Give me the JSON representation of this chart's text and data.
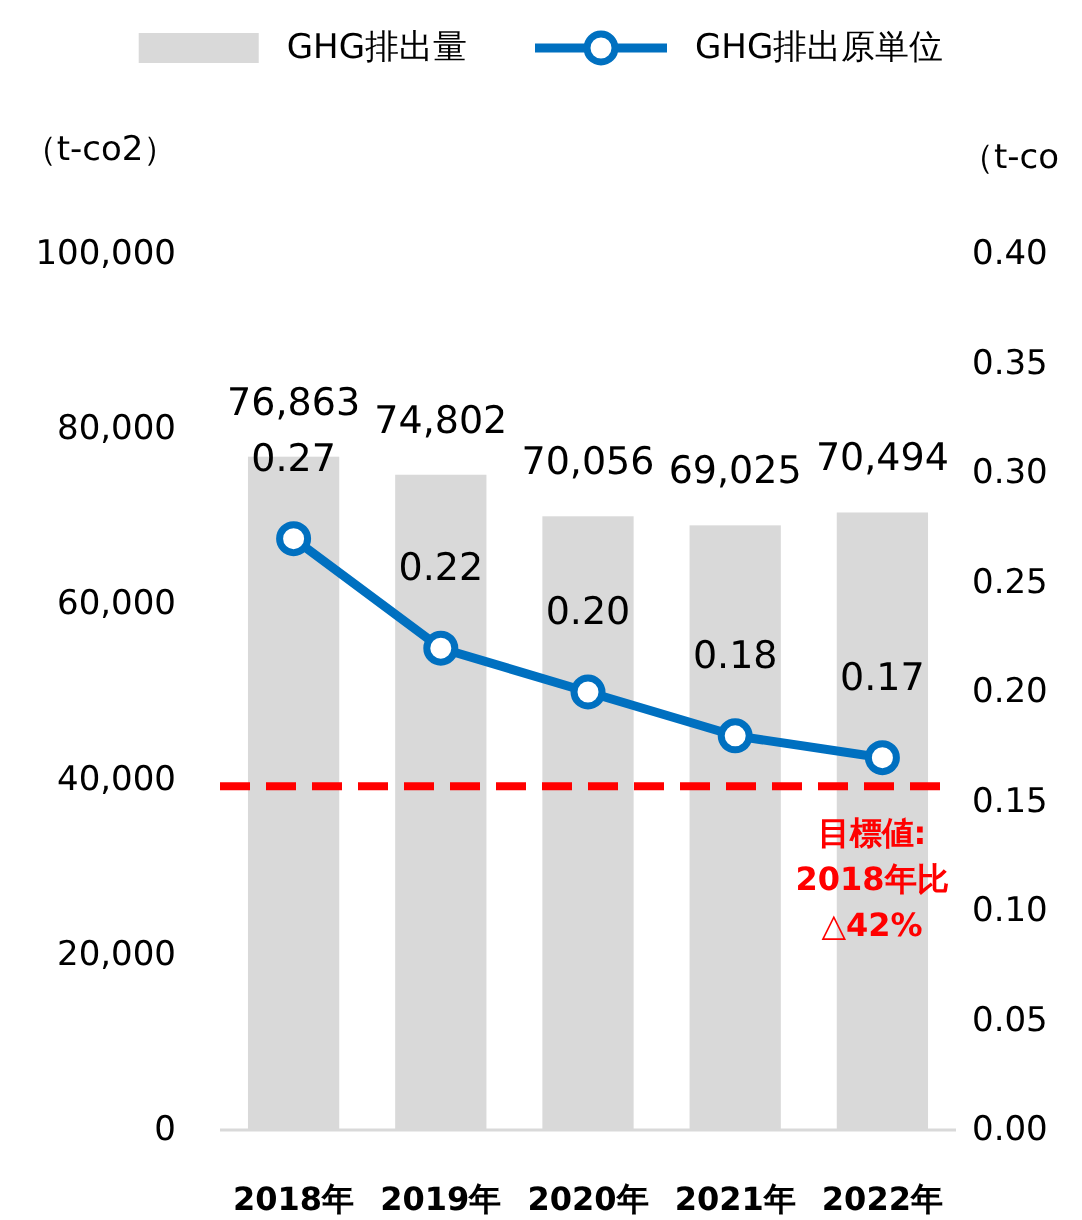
{
  "chart_data": {
    "type": "bar",
    "legend": "top",
    "categories": [
      "2018年",
      "2019年",
      "2020年",
      "2021年",
      "2022年"
    ],
    "ylabel": "（t-co2）",
    "y2label": "（t-co",
    "ylim": [
      0,
      100000
    ],
    "yticks": [
      0,
      {
        "value": 20000,
        "label": "20,000"
      },
      {
        "value": 40000,
        "label": "40,000"
      },
      {
        "value": 60000,
        "label": "60,000"
      },
      {
        "value": 80000,
        "label": "80,000"
      },
      {
        "value": 100000,
        "label": "100,000"
      }
    ],
    "y2lim": [
      0,
      0.4
    ],
    "y2ticks": [
      {
        "value": 0,
        "label": "0.00"
      },
      {
        "value": 0.05,
        "label": "0.05"
      },
      {
        "value": 0.1,
        "label": "0.10"
      },
      {
        "value": 0.15,
        "label": "0.15"
      },
      {
        "value": 0.2,
        "label": "0.20"
      },
      {
        "value": 0.25,
        "label": "0.25"
      },
      {
        "value": 0.3,
        "label": "0.30"
      },
      {
        "value": 0.35,
        "label": "0.35"
      },
      {
        "value": 0.4,
        "label": "0.40"
      }
    ],
    "series": [
      {
        "name": "GHG排出量",
        "color": "#d9d9d9",
        "values": [
          76863,
          74802,
          70056,
          69025,
          70494
        ],
        "value_labels": [
          "76,863",
          "74,802",
          "70,056",
          "69,025",
          "70,494"
        ]
      },
      {
        "name": "GHG排出原単位",
        "type": "line",
        "axis": "y2",
        "color": "#0070c0",
        "marker": "circle",
        "values": [
          0.27,
          0.22,
          0.2,
          0.18,
          0.17
        ],
        "value_labels": [
          "0.27",
          "0.22",
          "0.20",
          "0.18",
          "0.17"
        ]
      }
    ],
    "ref_lines": [
      {
        "axis": "y2",
        "value": 0.157,
        "color": "#ff0000",
        "line_style": "dashed"
      }
    ],
    "annotations": [
      "目標値:\n2018年比\n△42%"
    ]
  }
}
